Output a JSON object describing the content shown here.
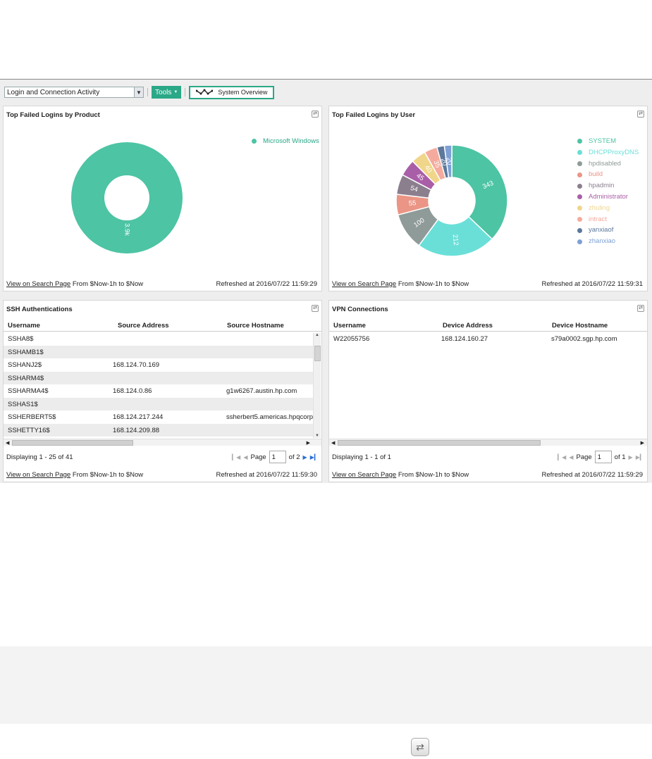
{
  "toolbar": {
    "dashboard_select": "Login and Connection Activity",
    "tools_label": "Tools",
    "system_overview_label": "System Overview"
  },
  "panels": {
    "by_product": {
      "title": "Top Failed Logins by Product",
      "footer_link": "View on Search Page",
      "range": "From $Now-1h to $Now",
      "refreshed": "Refreshed at  2016/07/22 11:59:29"
    },
    "by_user": {
      "title": "Top Failed Logins by User",
      "footer_link": "View on Search Page",
      "range": "From $Now-1h to $Now",
      "refreshed": "Refreshed at  2016/07/22 11:59:31"
    },
    "ssh": {
      "title": "SSH Authentications",
      "columns": [
        "Username",
        "Source Address",
        "Source Hostname"
      ],
      "rows": [
        [
          "SSHA8$",
          "",
          ""
        ],
        [
          "SSHAMB1$",
          "",
          ""
        ],
        [
          "SSHANJ2$",
          "168.124.70.169",
          ""
        ],
        [
          "SSHARM4$",
          "",
          ""
        ],
        [
          "SSHARMA4$",
          "168.124.0.86",
          "g1w6267.austin.hp.com"
        ],
        [
          "SSHAS1$",
          "",
          ""
        ],
        [
          "SSHERBERT5$",
          "168.124.217.244",
          "ssherbert5.americas.hpqcorp"
        ],
        [
          "SSHETTY16$",
          "168.124.209.88",
          ""
        ]
      ],
      "displaying": "Displaying 1 - 25 of 41",
      "page_label": "Page",
      "page_value": "1",
      "page_of": "of 2",
      "footer_link": "View on Search Page",
      "range": "From $Now-1h to $Now",
      "refreshed": "Refreshed at  2016/07/22 11:59:30"
    },
    "vpn": {
      "title": "VPN Connections",
      "columns": [
        "Username",
        "Device Address",
        "Device Hostname"
      ],
      "rows": [
        [
          "W22055756",
          "168.124.160.27",
          "s79a0002.sgp.hp.com"
        ]
      ],
      "displaying": "Displaying 1 - 1 of 1",
      "page_label": "Page",
      "page_value": "1",
      "page_of": "of 1",
      "footer_link": "View on Search Page",
      "range": "From $Now-1h to $Now",
      "refreshed": "Refreshed at  2016/07/22 11:59:29"
    }
  },
  "chart_data": [
    {
      "type": "pie",
      "title": "Top Failed Logins by Product",
      "slices": [
        {
          "label": "Microsoft Windows",
          "value": 3900,
          "display": "3.9k",
          "color": "#4dc4a4"
        }
      ]
    },
    {
      "type": "pie",
      "title": "Top Failed Logins by User",
      "slices": [
        {
          "label": "SYSTEM",
          "value": 343,
          "color": "#4dc4a4"
        },
        {
          "label": "DHCPProxyDNS",
          "value": 212,
          "color": "#6adfd8"
        },
        {
          "label": "hpdisabled",
          "value": 100,
          "color": "#8f9b98"
        },
        {
          "label": "build",
          "value": 55,
          "color": "#ea9585"
        },
        {
          "label": "hpadmin",
          "value": 54,
          "color": "#8b7f8e"
        },
        {
          "label": "Administrator",
          "value": 45,
          "color": "#a95fa7"
        },
        {
          "label": "zhuling",
          "value": 40,
          "color": "#f0d68a"
        },
        {
          "label": "intract",
          "value": 35,
          "color": "#f4ab9d"
        },
        {
          "label": "yanxiaof",
          "value": 20,
          "color": "#5c789c"
        },
        {
          "label": "zhanxiao",
          "value": 20,
          "color": "#7ea0d6"
        }
      ]
    }
  ]
}
